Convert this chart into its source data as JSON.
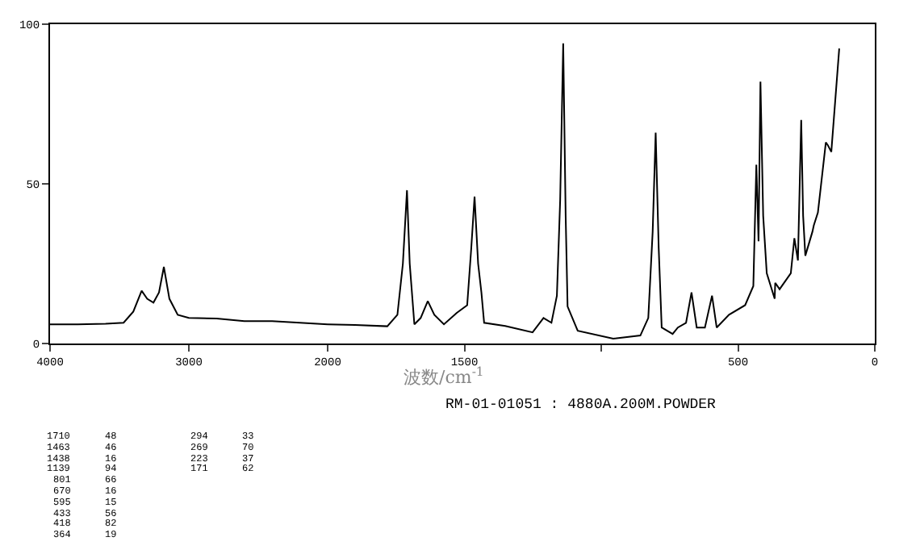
{
  "chart_data": [
    {
      "type": "line",
      "annotations": [
        "1710 48",
        "1463 46",
        "1438 16",
        "1139 94",
        "801 66",
        "670 16",
        "595 15",
        "433 56",
        "418 82",
        "364 19",
        "294 33",
        "269 70",
        "223 37",
        "171 62"
      ],
      "x": [
        4000,
        3800,
        3600,
        3470,
        3400,
        3340,
        3300,
        3255,
        3215,
        3180,
        3140,
        3080,
        3000,
        2800,
        2600,
        2400,
        2200,
        2000
      ],
      "series": [
        {
          "color": "#000000",
          "values": [
            6,
            6,
            6.2,
            6.5,
            10,
            16.5,
            14,
            12.8,
            16,
            24,
            14,
            9,
            8,
            7.8,
            7,
            7,
            6.5,
            6
          ]
        }
      ],
      "xlim": [
        4000,
        2000
      ],
      "xticks": [
        4000,
        3000,
        2000
      ],
      "ylim": [
        0,
        100
      ],
      "yticks": [
        0,
        50,
        100
      ]
    },
    {
      "type": "line",
      "tick_labels": "x",
      "xlabel": "波数/cm$^{-1}$",
      "subtitle": "RM-01-01051 : 4880A.200M.POWDER",
      "x": [
        2000,
        1900,
        1782,
        1745,
        1725,
        1710,
        1700,
        1683,
        1660,
        1634,
        1610,
        1575,
        1528,
        1490,
        1475,
        1463,
        1450,
        1438,
        1428,
        1351,
        1251,
        1211,
        1182,
        1162,
        1150,
        1139,
        1130,
        1123,
        1086,
        956,
        857,
        828,
        812,
        801,
        790,
        779,
        739,
        720,
        690,
        670,
        651,
        621,
        595,
        578,
        533,
        474,
        444,
        433,
        425,
        418,
        408,
        395,
        366,
        364,
        348,
        307,
        294,
        281,
        269,
        262,
        254,
        228,
        223,
        208,
        179,
        171,
        159,
        130
      ],
      "series": [
        {
          "color": "#000000",
          "values": [
            6,
            5.8,
            5.4,
            9,
            25,
            48,
            25,
            6,
            8,
            13.3,
            9,
            6,
            9.6,
            12,
            30,
            46,
            25,
            16,
            6.5,
            5.5,
            3.5,
            8,
            6.5,
            15,
            45,
            94,
            40,
            11.6,
            4,
            1.5,
            2.5,
            8,
            35,
            66,
            30,
            5,
            3,
            5,
            6.5,
            16,
            5,
            5,
            15,
            5,
            9,
            12,
            18,
            56,
            32,
            82,
            40,
            22,
            14,
            19,
            17,
            22,
            33,
            26,
            70,
            40,
            27.5,
            35,
            37,
            41,
            63,
            62,
            60,
            92.4
          ]
        }
      ],
      "xlim": [
        2000,
        0
      ],
      "xticks": [
        1500,
        {
          "value": 1000,
          "label": null
        },
        500,
        0
      ],
      "ylim": [
        0,
        100
      ]
    }
  ]
}
